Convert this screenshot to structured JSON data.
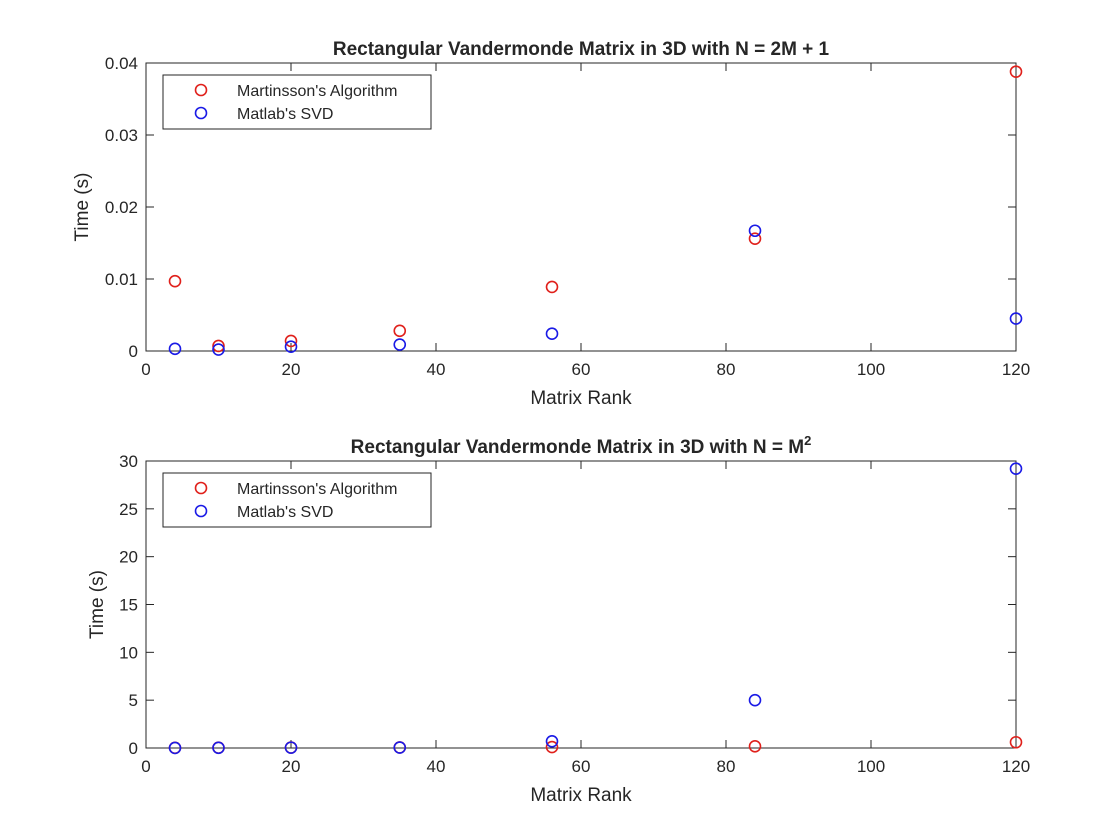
{
  "chart_data": [
    {
      "type": "scatter",
      "title": "Rectangular Vandermonde Matrix in 3D with N = 2M + 1",
      "title_sup": "",
      "xlabel": "Matrix Rank",
      "ylabel": "Time (s)",
      "xlim": [
        0,
        120
      ],
      "ylim": [
        0,
        0.04
      ],
      "xticks": [
        0,
        20,
        40,
        60,
        80,
        100,
        120
      ],
      "yticks": [
        0,
        0.01,
        0.02,
        0.03,
        0.04
      ],
      "xtick_labels": [
        "0",
        "20",
        "40",
        "60",
        "80",
        "100",
        "120"
      ],
      "ytick_labels": [
        "0",
        "0.01",
        "0.02",
        "0.03",
        "0.04"
      ],
      "grid": false,
      "legend_position": "top-left",
      "x": [
        4,
        10,
        20,
        35,
        56,
        84,
        120
      ],
      "series": [
        {
          "name": "Martinsson's Algorithm",
          "color": "#e0201b",
          "values": [
            0.0097,
            0.0007,
            0.0014,
            0.0028,
            0.0089,
            0.0156,
            0.0388
          ]
        },
        {
          "name": "Matlab's SVD",
          "color": "#1a1ae6",
          "values": [
            0.0003,
            0.0002,
            0.0006,
            0.0009,
            0.0024,
            0.0167,
            0.0045
          ]
        }
      ]
    },
    {
      "type": "scatter",
      "title": "Rectangular Vandermonde Matrix in 3D with N = M",
      "title_sup": "2",
      "xlabel": "Matrix Rank",
      "ylabel": "Time (s)",
      "xlim": [
        0,
        120
      ],
      "ylim": [
        0,
        30
      ],
      "xticks": [
        0,
        20,
        40,
        60,
        80,
        100,
        120
      ],
      "yticks": [
        0,
        5,
        10,
        15,
        20,
        25,
        30
      ],
      "xtick_labels": [
        "0",
        "20",
        "40",
        "60",
        "80",
        "100",
        "120"
      ],
      "ytick_labels": [
        "0",
        "5",
        "10",
        "15",
        "20",
        "25",
        "30"
      ],
      "grid": false,
      "legend_position": "top-left",
      "x": [
        4,
        10,
        20,
        35,
        56,
        84,
        120
      ],
      "series": [
        {
          "name": "Martinsson's Algorithm",
          "color": "#e0201b",
          "values": [
            0.02,
            0.03,
            0.05,
            0.06,
            0.1,
            0.18,
            0.6
          ]
        },
        {
          "name": "Matlab's SVD",
          "color": "#1a1ae6",
          "values": [
            0.01,
            0.02,
            0.04,
            0.05,
            0.7,
            5.0,
            29.2
          ]
        }
      ]
    }
  ]
}
